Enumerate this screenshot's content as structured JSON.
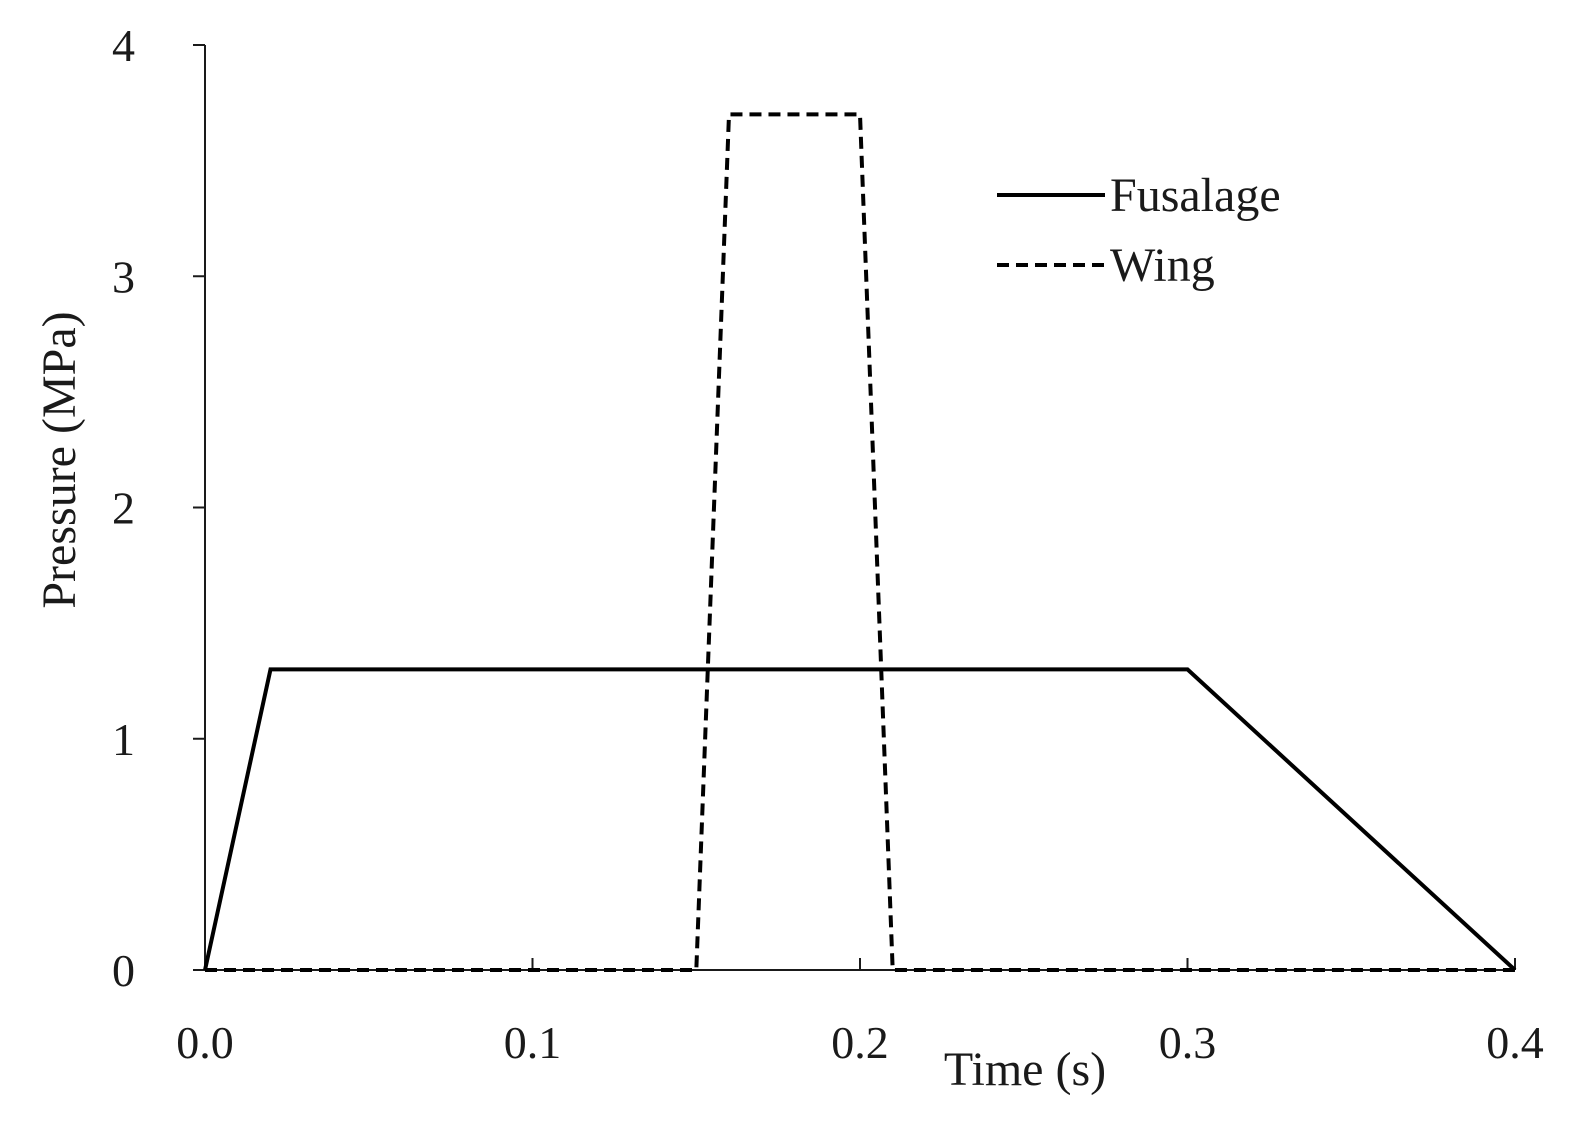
{
  "chart_data": {
    "type": "line",
    "title": "",
    "xlabel": "Time (s)",
    "ylabel": "Pressure (MPa)",
    "xlim": [
      0,
      0.4
    ],
    "ylim": [
      0,
      4
    ],
    "xticks": [
      0,
      0.1,
      0.2,
      0.3,
      0.4
    ],
    "xtick_labels": [
      "0.0",
      "0.1",
      "0.2",
      "0.3",
      "0.4"
    ],
    "yticks": [
      0,
      1,
      2,
      3,
      4
    ],
    "ytick_labels": [
      "0",
      "1",
      "2",
      "3",
      "4"
    ],
    "grid": false,
    "legend_position": "top-right",
    "series": [
      {
        "name": "Fusalage",
        "style": "solid",
        "color": "#000000",
        "x": [
          0,
          0.02,
          0.3,
          0.4
        ],
        "y": [
          0,
          1.3,
          1.3,
          0
        ]
      },
      {
        "name": "Wing",
        "style": "dashed",
        "color": "#000000",
        "x": [
          0,
          0.15,
          0.16,
          0.2,
          0.21,
          0.4
        ],
        "y": [
          0,
          0,
          3.7,
          3.7,
          0,
          0
        ]
      }
    ]
  }
}
